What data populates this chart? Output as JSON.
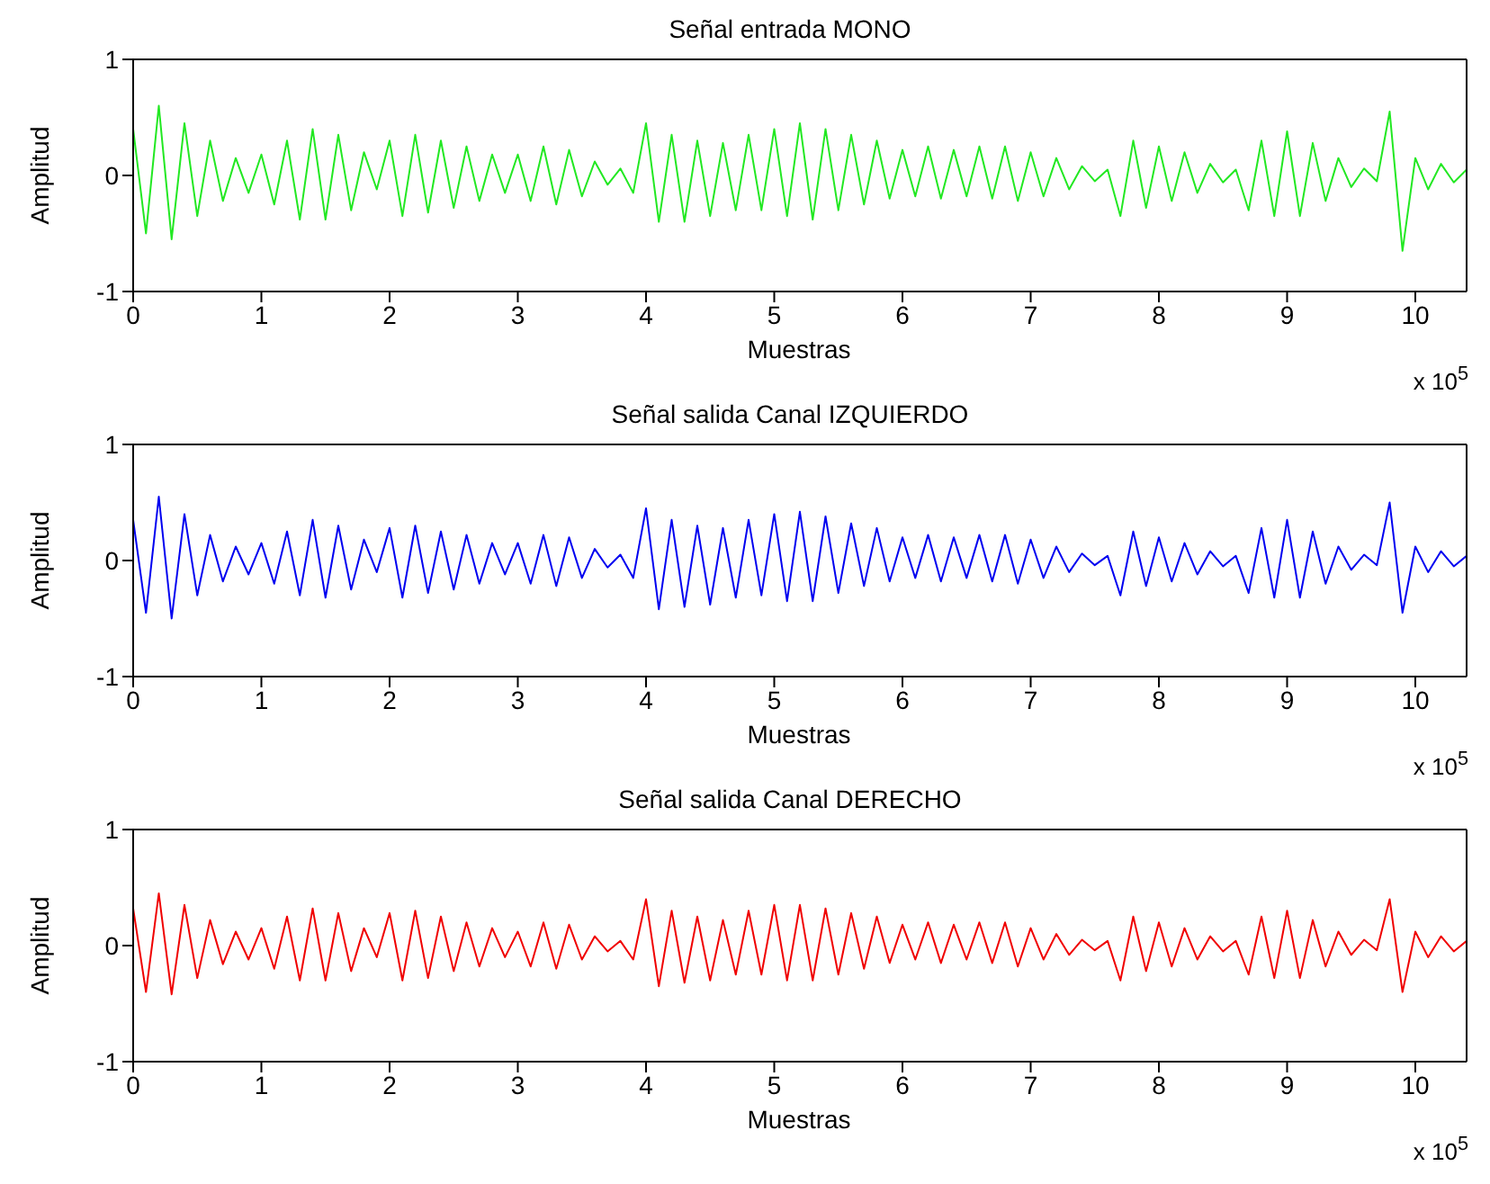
{
  "chart_data": [
    {
      "type": "line",
      "title": "Señal entrada MONO",
      "xlabel": "Muestras",
      "ylabel": "Amplitud",
      "annotations": [
        "x 10$^{5}$"
      ],
      "xlim": [
        0,
        10.4
      ],
      "xticks": [
        0,
        1,
        2,
        3,
        4,
        5,
        6,
        7,
        8,
        9,
        10
      ],
      "ylim": [
        -1,
        1
      ],
      "yticks": [
        -1,
        0,
        1
      ],
      "x": [
        0,
        0.1,
        0.2,
        0.3,
        0.4,
        0.5,
        0.6,
        0.7,
        0.8,
        0.9,
        1,
        1.1,
        1.2,
        1.3,
        1.4,
        1.5,
        1.6,
        1.7,
        1.8,
        1.9,
        2,
        2.1,
        2.2,
        2.3,
        2.4,
        2.5,
        2.6,
        2.7,
        2.8,
        2.9,
        3,
        3.1,
        3.2,
        3.3,
        3.4,
        3.5,
        3.6,
        3.7,
        3.8,
        3.9,
        4,
        4.1,
        4.2,
        4.3,
        4.4,
        4.5,
        4.6,
        4.7,
        4.8,
        4.9,
        5,
        5.1,
        5.2,
        5.3,
        5.4,
        5.5,
        5.6,
        5.7,
        5.8,
        5.9,
        6,
        6.1,
        6.2,
        6.3,
        6.4,
        6.5,
        6.6,
        6.7,
        6.8,
        6.9,
        7,
        7.1,
        7.2,
        7.3,
        7.4,
        7.5,
        7.6,
        7.7,
        7.8,
        7.9,
        8,
        8.1,
        8.2,
        8.3,
        8.4,
        8.5,
        8.6,
        8.7,
        8.8,
        8.9,
        9,
        9.1,
        9.2,
        9.3,
        9.4,
        9.5,
        9.6,
        9.7,
        9.8,
        9.9,
        10,
        10.1,
        10.2,
        10.3,
        10.4
      ],
      "series": [
        {
          "color": "#22e822",
          "values": [
            0.4,
            -0.5,
            0.6,
            -0.55,
            0.45,
            -0.35,
            0.3,
            -0.22,
            0.15,
            -0.15,
            0.18,
            -0.25,
            0.3,
            -0.38,
            0.4,
            -0.38,
            0.35,
            -0.3,
            0.2,
            -0.12,
            0.3,
            -0.35,
            0.35,
            -0.32,
            0.3,
            -0.28,
            0.25,
            -0.22,
            0.18,
            -0.15,
            0.18,
            -0.22,
            0.25,
            -0.25,
            0.22,
            -0.18,
            0.12,
            -0.08,
            0.06,
            -0.15,
            0.45,
            -0.4,
            0.35,
            -0.4,
            0.3,
            -0.35,
            0.28,
            -0.3,
            0.35,
            -0.3,
            0.4,
            -0.35,
            0.45,
            -0.38,
            0.4,
            -0.3,
            0.35,
            -0.25,
            0.3,
            -0.2,
            0.22,
            -0.18,
            0.25,
            -0.2,
            0.22,
            -0.18,
            0.25,
            -0.2,
            0.25,
            -0.22,
            0.2,
            -0.18,
            0.15,
            -0.12,
            0.08,
            -0.05,
            0.05,
            -0.35,
            0.3,
            -0.28,
            0.25,
            -0.22,
            0.2,
            -0.15,
            0.1,
            -0.06,
            0.05,
            -0.3,
            0.3,
            -0.35,
            0.38,
            -0.35,
            0.28,
            -0.22,
            0.15,
            -0.1,
            0.06,
            -0.05,
            0.55,
            -0.65,
            0.15,
            -0.12,
            0.1,
            -0.06,
            0.05
          ]
        }
      ]
    },
    {
      "type": "line",
      "title": "Señal salida Canal IZQUIERDO",
      "xlabel": "Muestras",
      "ylabel": "Amplitud",
      "annotations": [
        "x 10$^{5}$"
      ],
      "xlim": [
        0,
        10.4
      ],
      "xticks": [
        0,
        1,
        2,
        3,
        4,
        5,
        6,
        7,
        8,
        9,
        10
      ],
      "ylim": [
        -1,
        1
      ],
      "yticks": [
        -1,
        0,
        1
      ],
      "x": [
        0,
        0.1,
        0.2,
        0.3,
        0.4,
        0.5,
        0.6,
        0.7,
        0.8,
        0.9,
        1,
        1.1,
        1.2,
        1.3,
        1.4,
        1.5,
        1.6,
        1.7,
        1.8,
        1.9,
        2,
        2.1,
        2.2,
        2.3,
        2.4,
        2.5,
        2.6,
        2.7,
        2.8,
        2.9,
        3,
        3.1,
        3.2,
        3.3,
        3.4,
        3.5,
        3.6,
        3.7,
        3.8,
        3.9,
        4,
        4.1,
        4.2,
        4.3,
        4.4,
        4.5,
        4.6,
        4.7,
        4.8,
        4.9,
        5,
        5.1,
        5.2,
        5.3,
        5.4,
        5.5,
        5.6,
        5.7,
        5.8,
        5.9,
        6,
        6.1,
        6.2,
        6.3,
        6.4,
        6.5,
        6.6,
        6.7,
        6.8,
        6.9,
        7,
        7.1,
        7.2,
        7.3,
        7.4,
        7.5,
        7.6,
        7.7,
        7.8,
        7.9,
        8,
        8.1,
        8.2,
        8.3,
        8.4,
        8.5,
        8.6,
        8.7,
        8.8,
        8.9,
        9,
        9.1,
        9.2,
        9.3,
        9.4,
        9.5,
        9.6,
        9.7,
        9.8,
        9.9,
        10,
        10.1,
        10.2,
        10.3,
        10.4
      ],
      "series": [
        {
          "color": "#0000f0",
          "values": [
            0.35,
            -0.45,
            0.55,
            -0.5,
            0.4,
            -0.3,
            0.22,
            -0.18,
            0.12,
            -0.12,
            0.15,
            -0.2,
            0.25,
            -0.3,
            0.35,
            -0.32,
            0.3,
            -0.25,
            0.18,
            -0.1,
            0.28,
            -0.32,
            0.3,
            -0.28,
            0.25,
            -0.25,
            0.22,
            -0.2,
            0.15,
            -0.12,
            0.15,
            -0.2,
            0.22,
            -0.22,
            0.2,
            -0.15,
            0.1,
            -0.06,
            0.05,
            -0.15,
            0.45,
            -0.42,
            0.35,
            -0.4,
            0.3,
            -0.38,
            0.28,
            -0.32,
            0.35,
            -0.3,
            0.4,
            -0.35,
            0.42,
            -0.35,
            0.38,
            -0.28,
            0.32,
            -0.22,
            0.28,
            -0.18,
            0.2,
            -0.15,
            0.22,
            -0.18,
            0.2,
            -0.15,
            0.22,
            -0.18,
            0.22,
            -0.2,
            0.18,
            -0.15,
            0.12,
            -0.1,
            0.06,
            -0.04,
            0.04,
            -0.3,
            0.25,
            -0.22,
            0.2,
            -0.18,
            0.15,
            -0.12,
            0.08,
            -0.05,
            0.04,
            -0.28,
            0.28,
            -0.32,
            0.35,
            -0.32,
            0.25,
            -0.2,
            0.12,
            -0.08,
            0.05,
            -0.04,
            0.5,
            -0.45,
            0.12,
            -0.1,
            0.08,
            -0.05,
            0.04
          ]
        }
      ]
    },
    {
      "type": "line",
      "title": "Señal salida Canal DERECHO",
      "xlabel": "Muestras",
      "ylabel": "Amplitud",
      "annotations": [
        "x 10$^{5}$"
      ],
      "xlim": [
        0,
        10.4
      ],
      "xticks": [
        0,
        1,
        2,
        3,
        4,
        5,
        6,
        7,
        8,
        9,
        10
      ],
      "ylim": [
        -1,
        1
      ],
      "yticks": [
        -1,
        0,
        1
      ],
      "x": [
        0,
        0.1,
        0.2,
        0.3,
        0.4,
        0.5,
        0.6,
        0.7,
        0.8,
        0.9,
        1,
        1.1,
        1.2,
        1.3,
        1.4,
        1.5,
        1.6,
        1.7,
        1.8,
        1.9,
        2,
        2.1,
        2.2,
        2.3,
        2.4,
        2.5,
        2.6,
        2.7,
        2.8,
        2.9,
        3,
        3.1,
        3.2,
        3.3,
        3.4,
        3.5,
        3.6,
        3.7,
        3.8,
        3.9,
        4,
        4.1,
        4.2,
        4.3,
        4.4,
        4.5,
        4.6,
        4.7,
        4.8,
        4.9,
        5,
        5.1,
        5.2,
        5.3,
        5.4,
        5.5,
        5.6,
        5.7,
        5.8,
        5.9,
        6,
        6.1,
        6.2,
        6.3,
        6.4,
        6.5,
        6.6,
        6.7,
        6.8,
        6.9,
        7,
        7.1,
        7.2,
        7.3,
        7.4,
        7.5,
        7.6,
        7.7,
        7.8,
        7.9,
        8,
        8.1,
        8.2,
        8.3,
        8.4,
        8.5,
        8.6,
        8.7,
        8.8,
        8.9,
        9,
        9.1,
        9.2,
        9.3,
        9.4,
        9.5,
        9.6,
        9.7,
        9.8,
        9.9,
        10,
        10.1,
        10.2,
        10.3,
        10.4
      ],
      "series": [
        {
          "color": "#f00000",
          "values": [
            0.32,
            -0.4,
            0.45,
            -0.42,
            0.35,
            -0.28,
            0.22,
            -0.16,
            0.12,
            -0.12,
            0.15,
            -0.2,
            0.25,
            -0.3,
            0.32,
            -0.3,
            0.28,
            -0.22,
            0.15,
            -0.1,
            0.28,
            -0.3,
            0.3,
            -0.28,
            0.25,
            -0.22,
            0.2,
            -0.18,
            0.15,
            -0.1,
            0.12,
            -0.18,
            0.2,
            -0.2,
            0.18,
            -0.12,
            0.08,
            -0.05,
            0.04,
            -0.12,
            0.4,
            -0.35,
            0.3,
            -0.32,
            0.25,
            -0.3,
            0.22,
            -0.25,
            0.3,
            -0.25,
            0.35,
            -0.3,
            0.35,
            -0.3,
            0.32,
            -0.25,
            0.28,
            -0.2,
            0.25,
            -0.15,
            0.18,
            -0.12,
            0.2,
            -0.15,
            0.18,
            -0.12,
            0.2,
            -0.15,
            0.2,
            -0.18,
            0.15,
            -0.12,
            0.1,
            -0.08,
            0.05,
            -0.04,
            0.04,
            -0.3,
            0.25,
            -0.22,
            0.2,
            -0.18,
            0.15,
            -0.12,
            0.08,
            -0.05,
            0.04,
            -0.25,
            0.25,
            -0.28,
            0.3,
            -0.28,
            0.22,
            -0.18,
            0.12,
            -0.08,
            0.05,
            -0.04,
            0.4,
            -0.4,
            0.12,
            -0.1,
            0.08,
            -0.05,
            0.04
          ]
        }
      ]
    }
  ]
}
